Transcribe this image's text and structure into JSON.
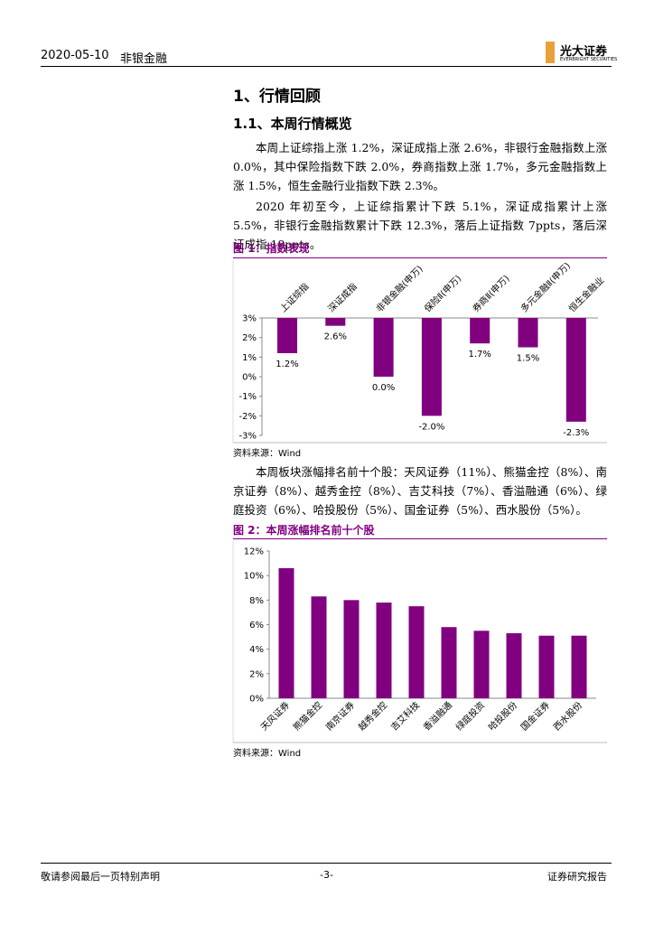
{
  "header": {
    "date": "2020-05-10",
    "sector": "非银金融",
    "logo": "光大证券",
    "logo_en": "EVERBRIGHT SECURITIES"
  },
  "headings": [
    "1、行情回顾",
    "1.1、本周行情概览"
  ],
  "paragraphs": [
    "本周上证综指上涨 1.2%，深证成指上涨 2.6%，非银行金融指数上涨 0.0%，其中保险指数下跌 2.0%，券商指数上涨 1.7%，多元金融指数上涨 1.5%，恒生金融行业指数下跌 2.3%。",
    "2020 年初至今，上证综指累计下跌 5.1%，深证成指累计上涨 5.5%，非银行金融指数累计下跌 12.3%，落后上证指数 7ppts，落后深证成指 18ppts。",
    "本周板块涨幅排名前十个股：天风证券（11%）、熊猫金控（8%）、南京证券（8%）、越秀金控（8%）、吉艾科技（7%）、香溢融通（6%）、绿庭投资（6%）、哈投股份（5%）、国金证券（5%）、西水股份（5%）。"
  ],
  "figures": [
    {
      "title": "图 1：指数表现",
      "source": "资料来源：Wind"
    },
    {
      "title": "图 2：本周涨幅排名前十个股",
      "source": "资料来源：Wind"
    }
  ],
  "chart_data": [
    {
      "type": "bar",
      "x_axis_position": "top",
      "color": "#800080",
      "categories": [
        "上证综指",
        "深证成指",
        "非银金融(申万)",
        "保险Ⅱ(申万)",
        "券商Ⅱ(申万)",
        "多元金融Ⅱ(申万)",
        "恒生金融业"
      ],
      "values": [
        1.2,
        2.6,
        0.0,
        -2.0,
        1.7,
        1.5,
        -2.3
      ],
      "value_labels": [
        "1.2%",
        "2.6%",
        "0.0%",
        "-2.0%",
        "1.7%",
        "1.5%",
        "-2.3%"
      ],
      "ylim": [
        -3,
        3
      ],
      "yticks": [
        {
          "value": 3,
          "label": "3%"
        },
        {
          "value": 2,
          "label": "2%"
        },
        {
          "value": 1,
          "label": "1%"
        },
        {
          "value": 0,
          "label": "0%"
        },
        {
          "value": -1,
          "label": "-1%"
        },
        {
          "value": -2,
          "label": "-2%"
        },
        {
          "value": -3,
          "label": "-3%"
        }
      ]
    },
    {
      "type": "bar",
      "x_axis_position": "bottom",
      "color": "#800080",
      "categories": [
        "天风证券",
        "熊猫金控",
        "南京证券",
        "越秀金控",
        "吉艾科技",
        "香溢融通",
        "绿庭投资",
        "哈投股份",
        "国金证券",
        "西水股份"
      ],
      "values": [
        10.6,
        8.3,
        8.0,
        7.8,
        7.5,
        5.8,
        5.5,
        5.3,
        5.1,
        5.1
      ],
      "ylim": [
        0,
        12
      ],
      "yticks": [
        {
          "value": 12,
          "label": "12%"
        },
        {
          "value": 10,
          "label": "10%"
        },
        {
          "value": 8,
          "label": "8%"
        },
        {
          "value": 6,
          "label": "6%"
        },
        {
          "value": 4,
          "label": "4%"
        },
        {
          "value": 2,
          "label": "2%"
        },
        {
          "value": 0,
          "label": "0%"
        }
      ]
    }
  ],
  "footer": {
    "left": "敬请参阅最后一页特别声明",
    "page": "-3-",
    "right": "证券研究报告"
  }
}
